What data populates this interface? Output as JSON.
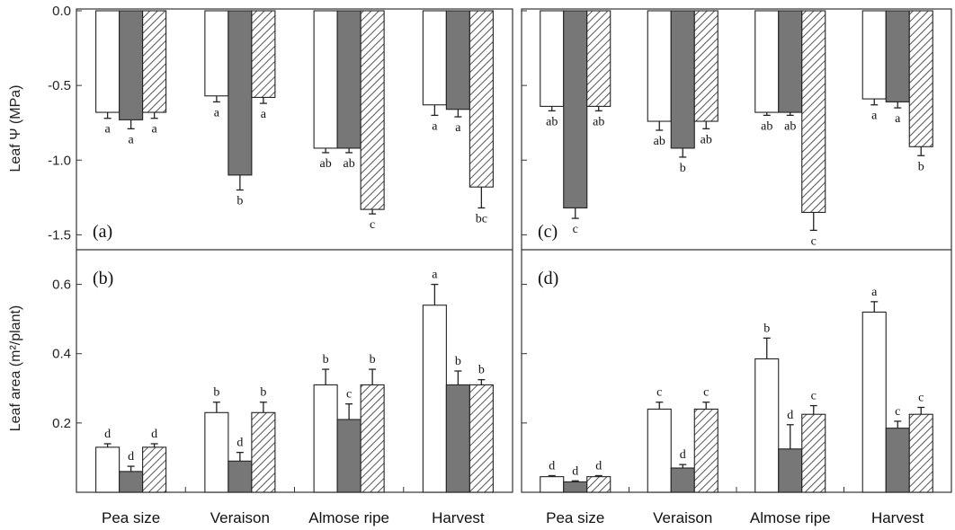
{
  "figure": {
    "categories": [
      "Pea size",
      "Veraison",
      "Almose ripe",
      "Harvest"
    ],
    "ylabel_top": "Leaf Ψ (MPa)",
    "ylabel_bottom": "Leaf area (m²/plant)",
    "colors": {
      "series1": "#ffffff",
      "series2": "#777777",
      "series3_hatch": "#555555",
      "axis": "#333333"
    }
  },
  "chart_data": [
    {
      "panel": "(a)",
      "type": "bar",
      "categories": [
        "Pea size",
        "Veraison",
        "Almose ripe",
        "Harvest"
      ],
      "ylim": [
        -1.6,
        0.0
      ],
      "yticks": [
        0.0,
        -0.5,
        -1.0,
        -1.5
      ],
      "series": [
        {
          "style": "white",
          "values": [
            -0.68,
            -0.57,
            -0.92,
            -0.63
          ],
          "errors": [
            0.04,
            0.04,
            0.03,
            0.07
          ],
          "letters": [
            "a",
            "a",
            "ab",
            "a"
          ]
        },
        {
          "style": "gray",
          "values": [
            -0.73,
            -1.1,
            -0.92,
            -0.66
          ],
          "errors": [
            0.06,
            0.1,
            0.03,
            0.05
          ],
          "letters": [
            "a",
            "b",
            "ab",
            "a"
          ]
        },
        {
          "style": "hatched",
          "values": [
            -0.68,
            -0.58,
            -1.33,
            -1.18
          ],
          "errors": [
            0.04,
            0.04,
            0.03,
            0.14
          ],
          "letters": [
            "a",
            "a",
            "c",
            "bc"
          ]
        }
      ]
    },
    {
      "panel": "(b)",
      "type": "bar",
      "categories": [
        "Pea size",
        "Veraison",
        "Almose ripe",
        "Harvest"
      ],
      "ylim": [
        0.0,
        0.7
      ],
      "yticks": [
        0.2,
        0.4,
        0.6
      ],
      "series": [
        {
          "style": "white",
          "values": [
            0.13,
            0.23,
            0.31,
            0.54
          ],
          "errors": [
            0.01,
            0.03,
            0.045,
            0.06
          ],
          "letters": [
            "d",
            "b",
            "b",
            "a"
          ]
        },
        {
          "style": "gray",
          "values": [
            0.06,
            0.09,
            0.21,
            0.31
          ],
          "errors": [
            0.015,
            0.025,
            0.045,
            0.04
          ],
          "letters": [
            "d",
            "d",
            "c",
            "b"
          ]
        },
        {
          "style": "hatched",
          "values": [
            0.13,
            0.23,
            0.31,
            0.31
          ],
          "errors": [
            0.01,
            0.03,
            0.045,
            0.015
          ],
          "letters": [
            "d",
            "b",
            "b",
            "b"
          ]
        }
      ]
    },
    {
      "panel": "(c)",
      "type": "bar",
      "categories": [
        "Pea size",
        "Veraison",
        "Almose ripe",
        "Harvest"
      ],
      "ylim": [
        -1.6,
        0.0
      ],
      "yticks": [
        0.0,
        -0.5,
        -1.0,
        -1.5
      ],
      "series": [
        {
          "style": "white",
          "values": [
            -0.64,
            -0.74,
            -0.68,
            -0.59
          ],
          "errors": [
            0.03,
            0.06,
            0.02,
            0.04
          ],
          "letters": [
            "ab",
            "ab",
            "ab",
            "a"
          ]
        },
        {
          "style": "gray",
          "values": [
            -1.32,
            -0.92,
            -0.68,
            -0.61
          ],
          "errors": [
            0.07,
            0.06,
            0.02,
            0.04
          ],
          "letters": [
            "c",
            "b",
            "ab",
            "a"
          ]
        },
        {
          "style": "hatched",
          "values": [
            -0.64,
            -0.74,
            -1.35,
            -0.91
          ],
          "errors": [
            0.03,
            0.05,
            0.12,
            0.06
          ],
          "letters": [
            "ab",
            "ab",
            "c",
            "b"
          ]
        }
      ]
    },
    {
      "panel": "(d)",
      "type": "bar",
      "categories": [
        "Pea size",
        "Veraison",
        "Almose ripe",
        "Harvest"
      ],
      "ylim": [
        0.0,
        0.7
      ],
      "yticks": [
        0.2,
        0.4,
        0.6
      ],
      "series": [
        {
          "style": "white",
          "values": [
            0.045,
            0.24,
            0.385,
            0.52
          ],
          "errors": [
            0.003,
            0.02,
            0.06,
            0.03
          ],
          "letters": [
            "d",
            "c",
            "b",
            "a"
          ]
        },
        {
          "style": "gray",
          "values": [
            0.03,
            0.07,
            0.125,
            0.185
          ],
          "errors": [
            0.003,
            0.01,
            0.07,
            0.02
          ],
          "letters": [
            "d",
            "d",
            "d",
            "c"
          ]
        },
        {
          "style": "hatched",
          "values": [
            0.045,
            0.24,
            0.225,
            0.225
          ],
          "errors": [
            0.003,
            0.02,
            0.025,
            0.02
          ],
          "letters": [
            "d",
            "c",
            "c",
            "c"
          ]
        }
      ]
    }
  ]
}
